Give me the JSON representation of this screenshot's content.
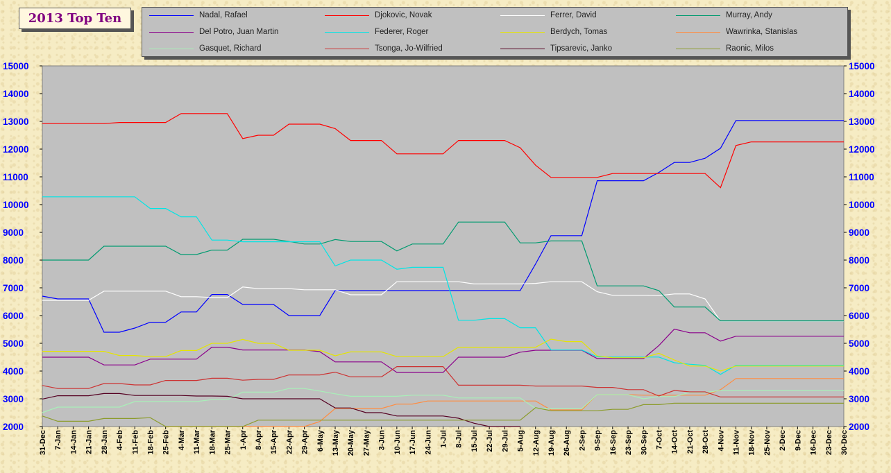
{
  "chart_data": {
    "type": "line",
    "title": "2013 Top Ten",
    "ylim": [
      2000,
      15000
    ],
    "yticks": [
      2000,
      3000,
      4000,
      5000,
      6000,
      7000,
      8000,
      9000,
      10000,
      11000,
      12000,
      13000,
      14000,
      15000
    ],
    "grid": false,
    "legend_position": "top",
    "plot_background": "#c0c0c0",
    "categories": [
      "31-Dec",
      "7-Jan",
      "14-Jan",
      "21-Jan",
      "28-Jan",
      "4-Feb",
      "11-Feb",
      "18-Feb",
      "25-Feb",
      "4-Mar",
      "11-Mar",
      "18-Mar",
      "25-Mar",
      "1-Apr",
      "8-Apr",
      "15-Apr",
      "22-Apr",
      "29-Apr",
      "6-May",
      "13-May",
      "20-May",
      "27-May",
      "3-Jun",
      "10-Jun",
      "17-Jun",
      "24-Jun",
      "1-Jul",
      "8-Jul",
      "15-Jul",
      "22-Jul",
      "29-Jul",
      "5-Aug",
      "12-Aug",
      "19-Aug",
      "26-Aug",
      "2-Sep",
      "9-Sep",
      "16-Sep",
      "23-Sep",
      "30-Sep",
      "7-Oct",
      "14-Oct",
      "21-Oct",
      "28-Oct",
      "4-Nov",
      "11-Nov",
      "18-Nov",
      "25-Nov",
      "2-Dec",
      "9-Dec",
      "16-Dec",
      "23-Dec",
      "30-Dec"
    ],
    "series": [
      {
        "name": "Nadal, Rafael",
        "color": "#0000ff",
        "values": [
          6700,
          6600,
          6600,
          6600,
          5400,
          5400,
          5550,
          5760,
          5760,
          6130,
          6130,
          6760,
          6760,
          6400,
          6400,
          6400,
          6000,
          6000,
          6000,
          6900,
          6900,
          6900,
          6900,
          6900,
          6900,
          6900,
          6900,
          6900,
          6900,
          6900,
          6900,
          6900,
          7860,
          8880,
          8880,
          8880,
          10860,
          10860,
          10860,
          10860,
          11160,
          11520,
          11520,
          11670,
          12030,
          13030,
          13030,
          13030,
          13030,
          13030,
          13030,
          13030,
          13030
        ]
      },
      {
        "name": "Djokovic, Novak",
        "color": "#ff0000",
        "values": [
          12920,
          12920,
          12920,
          12920,
          12920,
          12960,
          12960,
          12960,
          12960,
          13280,
          13280,
          13280,
          13280,
          12380,
          12500,
          12500,
          12900,
          12900,
          12900,
          12740,
          12310,
          12310,
          12310,
          11830,
          11830,
          11830,
          11830,
          12310,
          12310,
          12310,
          12310,
          12050,
          11420,
          10980,
          10980,
          10980,
          10980,
          11120,
          11120,
          11120,
          11120,
          11120,
          11120,
          11120,
          10610,
          12130,
          12260,
          12260,
          12260,
          12260,
          12260,
          12260,
          12260
        ]
      },
      {
        "name": "Ferrer, David",
        "color": "#ffffff",
        "values": [
          6550,
          6550,
          6550,
          6550,
          6880,
          6880,
          6880,
          6880,
          6880,
          6680,
          6680,
          6650,
          6650,
          7030,
          6970,
          6970,
          6970,
          6930,
          6930,
          6930,
          6750,
          6750,
          6750,
          7220,
          7220,
          7220,
          7220,
          7220,
          7140,
          7140,
          7140,
          7140,
          7160,
          7220,
          7220,
          7220,
          6860,
          6730,
          6730,
          6730,
          6720,
          6780,
          6780,
          6600,
          5800,
          5800,
          5800,
          5800,
          5800,
          5800,
          5800,
          5800,
          5800
        ]
      },
      {
        "name": "Murray, Andy",
        "color": "#009b70",
        "values": [
          8000,
          8000,
          8000,
          8000,
          8500,
          8500,
          8500,
          8500,
          8500,
          8200,
          8200,
          8360,
          8360,
          8750,
          8750,
          8750,
          8670,
          8580,
          8580,
          8740,
          8670,
          8670,
          8670,
          8330,
          8580,
          8580,
          8580,
          9370,
          9370,
          9370,
          9370,
          8620,
          8620,
          8690,
          8690,
          8690,
          7070,
          7070,
          7070,
          7070,
          6900,
          6310,
          6310,
          6310,
          5810,
          5810,
          5810,
          5810,
          5810,
          5810,
          5810,
          5810,
          5810
        ]
      },
      {
        "name": "Del Potro, Juan Martin",
        "color": "#8b008b",
        "values": [
          4500,
          4500,
          4500,
          4500,
          4220,
          4220,
          4220,
          4430,
          4430,
          4430,
          4430,
          4860,
          4860,
          4760,
          4760,
          4760,
          4760,
          4760,
          4700,
          4330,
          4330,
          4330,
          4330,
          3950,
          3950,
          3950,
          3950,
          4500,
          4500,
          4500,
          4500,
          4680,
          4750,
          4750,
          4750,
          4750,
          4450,
          4450,
          4450,
          4450,
          4920,
          5510,
          5380,
          5380,
          5080,
          5255,
          5255,
          5255,
          5255,
          5255,
          5255,
          5255,
          5255
        ]
      },
      {
        "name": "Federer, Roger",
        "color": "#00e5e5",
        "values": [
          10280,
          10280,
          10280,
          10280,
          10280,
          10280,
          10280,
          9860,
          9860,
          9560,
          9560,
          8720,
          8720,
          8660,
          8660,
          8660,
          8660,
          8660,
          8660,
          7790,
          8000,
          8000,
          8000,
          7670,
          7740,
          7740,
          7740,
          5830,
          5830,
          5890,
          5890,
          5560,
          5560,
          4760,
          4760,
          4760,
          4515,
          4505,
          4505,
          4505,
          4505,
          4300,
          4245,
          4205,
          3880,
          4205,
          4205,
          4205,
          4205,
          4205,
          4205,
          4205,
          4205
        ]
      },
      {
        "name": "Berdych, Tomas",
        "color": "#e5e500",
        "values": [
          4710,
          4710,
          4710,
          4710,
          4710,
          4560,
          4560,
          4520,
          4520,
          4740,
          4740,
          5000,
          5000,
          5140,
          5000,
          5000,
          4750,
          4750,
          4750,
          4550,
          4690,
          4690,
          4690,
          4520,
          4520,
          4520,
          4520,
          4860,
          4860,
          4860,
          4860,
          4860,
          4860,
          5150,
          5060,
          5060,
          4545,
          4480,
          4480,
          4480,
          4640,
          4400,
          4180,
          4180,
          4000,
          4180,
          4180,
          4180,
          4180,
          4180,
          4180,
          4180,
          4180
        ]
      },
      {
        "name": "Wawrinka, Stanislas",
        "color": "#ff8c40",
        "values": [
          null,
          null,
          null,
          null,
          null,
          null,
          null,
          null,
          1990,
          1990,
          1990,
          1990,
          1990,
          1990,
          1990,
          1990,
          1990,
          1990,
          2180,
          2650,
          2650,
          2650,
          2650,
          2810,
          2810,
          2920,
          2920,
          2920,
          2920,
          2920,
          2920,
          2920,
          2920,
          2600,
          2600,
          2600,
          3150,
          3150,
          3150,
          3130,
          3130,
          3130,
          3130,
          3130,
          3330,
          3730,
          3730,
          3730,
          3730,
          3730,
          3730,
          3730,
          3730
        ]
      },
      {
        "name": "Gasquet, Richard",
        "color": "#a8f0b8",
        "values": [
          2500,
          2700,
          2700,
          2700,
          2700,
          2700,
          2900,
          2900,
          2900,
          2900,
          2900,
          2970,
          2970,
          3240,
          3240,
          3240,
          3370,
          3370,
          3280,
          3180,
          3090,
          3090,
          3090,
          3090,
          3130,
          3130,
          3130,
          3030,
          3030,
          3030,
          3030,
          3030,
          2650,
          2650,
          2650,
          2650,
          3150,
          3150,
          3150,
          3000,
          3080,
          3080,
          3230,
          3230,
          3300,
          3300,
          3300,
          3300,
          3300,
          3300,
          3300,
          3300,
          3300
        ]
      },
      {
        "name": "Tsonga, Jo-Wilfried",
        "color": "#cc3333",
        "values": [
          3480,
          3370,
          3370,
          3370,
          3550,
          3550,
          3500,
          3500,
          3660,
          3660,
          3660,
          3740,
          3740,
          3670,
          3700,
          3700,
          3860,
          3860,
          3860,
          3960,
          3790,
          3790,
          3790,
          4160,
          4160,
          4160,
          4160,
          3490,
          3490,
          3490,
          3490,
          3490,
          3460,
          3460,
          3460,
          3460,
          3410,
          3410,
          3330,
          3330,
          3100,
          3300,
          3250,
          3250,
          3065,
          3065,
          3065,
          3065,
          3065,
          3065,
          3065,
          3065,
          3065
        ]
      },
      {
        "name": "Tipsarevic, Janko",
        "color": "#550022",
        "values": [
          2990,
          3110,
          3110,
          3110,
          3190,
          3190,
          3120,
          3120,
          3120,
          3120,
          3100,
          3100,
          3090,
          3000,
          3000,
          3000,
          3000,
          3000,
          3000,
          2670,
          2670,
          2500,
          2500,
          2380,
          2380,
          2380,
          2380,
          2300,
          2120,
          2000,
          2000,
          1950,
          null,
          null,
          null,
          null,
          null,
          null,
          null,
          null,
          null,
          null,
          null,
          null,
          null,
          null,
          null,
          null,
          null,
          null,
          null,
          null,
          null
        ]
      },
      {
        "name": "Raonic, Milos",
        "color": "#8c9c2c",
        "values": [
          2380,
          2190,
          2190,
          2190,
          2290,
          2290,
          2290,
          2320,
          2000,
          2000,
          2000,
          2000,
          2000,
          2000,
          2230,
          2230,
          2230,
          2230,
          2230,
          2230,
          2230,
          2230,
          2230,
          2230,
          2230,
          2230,
          2230,
          2230,
          2230,
          2230,
          2230,
          2230,
          2680,
          2570,
          2570,
          2570,
          2570,
          2620,
          2620,
          2790,
          2790,
          2840,
          2840,
          2840,
          2840,
          2840,
          2840,
          2840,
          2840,
          2840,
          2840,
          2840,
          2840
        ]
      }
    ]
  }
}
